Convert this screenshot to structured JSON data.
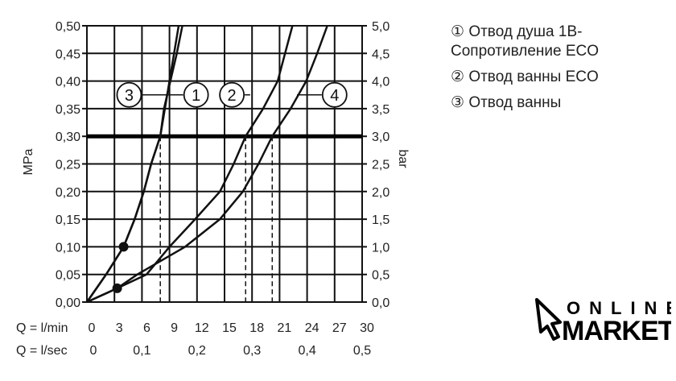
{
  "chart_data": {
    "type": "line",
    "xlabel_rows": [
      {
        "label": "Q = l/min",
        "ticks": [
          "0",
          "3",
          "6",
          "9",
          "12",
          "15",
          "18",
          "21",
          "24",
          "27",
          "30"
        ]
      },
      {
        "label": "Q = l/sec",
        "ticks": [
          "0",
          "0,1",
          "0,2",
          "0,3",
          "0,4",
          "0,5"
        ]
      }
    ],
    "xlim": [
      0,
      30
    ],
    "ylabel_left": "MPa",
    "ylabel_right": "bar",
    "ylim": [
      0,
      0.5
    ],
    "yticks_left": [
      "0,00",
      "0,05",
      "0,10",
      "0,15",
      "0,20",
      "0,25",
      "0,30",
      "0,35",
      "0,40",
      "0,45",
      "0,50"
    ],
    "yticks_right": [
      "0,0",
      "0,5",
      "1,0",
      "1,5",
      "2,0",
      "2,5",
      "3,0",
      "3,5",
      "4,0",
      "4,5",
      "5,0"
    ],
    "grid": true,
    "reference_line": 0.3,
    "dropdown_q": [
      8.0,
      17.3,
      20.2
    ],
    "series": [
      {
        "name": "3",
        "x": [
          0,
          2.1,
          4.0,
          5.2,
          6.2,
          7.0,
          8.0,
          8.5,
          9.0,
          9.5,
          10.0
        ],
        "y": [
          0,
          0.05,
          0.1,
          0.15,
          0.2,
          0.25,
          0.3,
          0.35,
          0.4,
          0.45,
          0.5
        ]
      },
      {
        "name": "1",
        "x": [
          0,
          2.1,
          4.0,
          5.2,
          6.2,
          7.0,
          8.0,
          8.4,
          9.1,
          9.8,
          10.4
        ],
        "y": [
          0,
          0.05,
          0.1,
          0.15,
          0.2,
          0.25,
          0.3,
          0.35,
          0.4,
          0.45,
          0.5
        ]
      },
      {
        "name": "2",
        "x": [
          0,
          3.3,
          6.5,
          9.0,
          11.8,
          14.5,
          16.0,
          17.3,
          19.2,
          20.8,
          21.6,
          22.4
        ],
        "y": [
          0,
          0.025,
          0.05,
          0.1,
          0.15,
          0.2,
          0.25,
          0.3,
          0.35,
          0.4,
          0.45,
          0.5
        ]
      },
      {
        "name": "4",
        "x": [
          0,
          3.3,
          5.5,
          10.7,
          14.5,
          17.0,
          18.7,
          20.2,
          22.2,
          23.9,
          25.1,
          26.2
        ],
        "y": [
          0,
          0.025,
          0.05,
          0.1,
          0.15,
          0.2,
          0.25,
          0.3,
          0.35,
          0.4,
          0.45,
          0.5
        ]
      }
    ],
    "markers": [
      {
        "x": 4.0,
        "y": 0.1
      },
      {
        "x": 3.3,
        "y": 0.025
      }
    ],
    "callouts": [
      {
        "label": "3",
        "q": 4.6
      },
      {
        "label": "1",
        "q": 11.9
      },
      {
        "label": "2",
        "q": 15.8
      },
      {
        "label": "4",
        "q": 27.0
      }
    ]
  },
  "legend": [
    {
      "num": "①",
      "text": "Отвод душа 1B-"
    },
    {
      "num": "",
      "text": "Сопротивление  ECO"
    },
    {
      "num": "②",
      "text": "Отвод ванны ECO"
    },
    {
      "num": "③",
      "text": "Отвод ванны"
    }
  ],
  "logo": {
    "top": "ONLINE",
    "bottom": "MARKET"
  }
}
